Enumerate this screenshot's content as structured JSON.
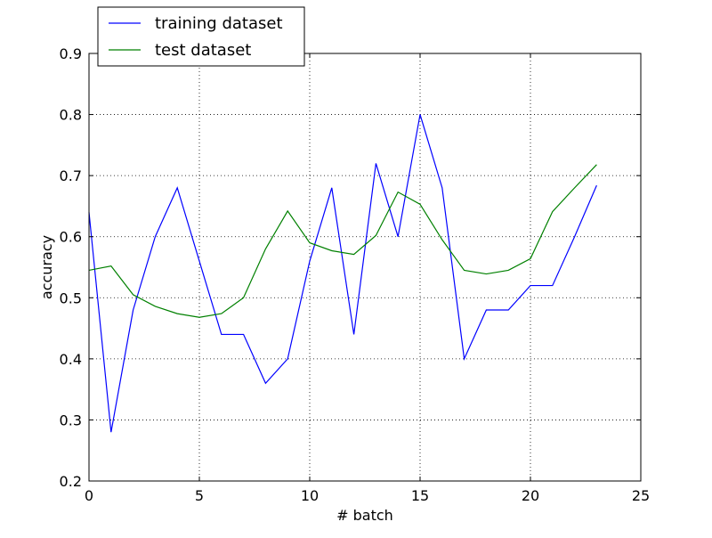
{
  "chart_data": {
    "type": "line",
    "xlabel": "# batch",
    "ylabel": "accuracy",
    "xlim": [
      0,
      25
    ],
    "ylim": [
      0.2,
      0.9
    ],
    "xticks": [
      0,
      5,
      10,
      15,
      20,
      25
    ],
    "xtick_labels": [
      "0",
      "5",
      "10",
      "15",
      "20",
      "25"
    ],
    "yticks": [
      0.2,
      0.3,
      0.4,
      0.5,
      0.6,
      0.7,
      0.8,
      0.9
    ],
    "ytick_labels": [
      "0.2",
      "0.3",
      "0.4",
      "0.5",
      "0.6",
      "0.7",
      "0.8",
      "0.9"
    ],
    "grid": true,
    "legend_position": "top-left",
    "x": [
      0,
      1,
      2,
      3,
      4,
      5,
      6,
      7,
      8,
      9,
      10,
      11,
      12,
      13,
      14,
      15,
      16,
      17,
      18,
      19,
      20,
      21,
      22,
      23
    ],
    "series": [
      {
        "name": "training dataset",
        "color": "#0000ff",
        "values": [
          0.64,
          0.28,
          0.48,
          0.6,
          0.68,
          0.56,
          0.44,
          0.44,
          0.36,
          0.4,
          0.56,
          0.68,
          0.44,
          0.72,
          0.6,
          0.8,
          0.68,
          0.4,
          0.48,
          0.48,
          0.52,
          0.52,
          0.6,
          0.684
        ]
      },
      {
        "name": "test dataset",
        "color": "#008000",
        "values": [
          0.545,
          0.552,
          0.505,
          0.486,
          0.474,
          0.468,
          0.474,
          0.5,
          0.58,
          0.642,
          0.59,
          0.577,
          0.571,
          0.602,
          0.673,
          0.653,
          0.595,
          0.545,
          0.539,
          0.545,
          0.564,
          0.641,
          0.68,
          0.718
        ]
      }
    ]
  }
}
